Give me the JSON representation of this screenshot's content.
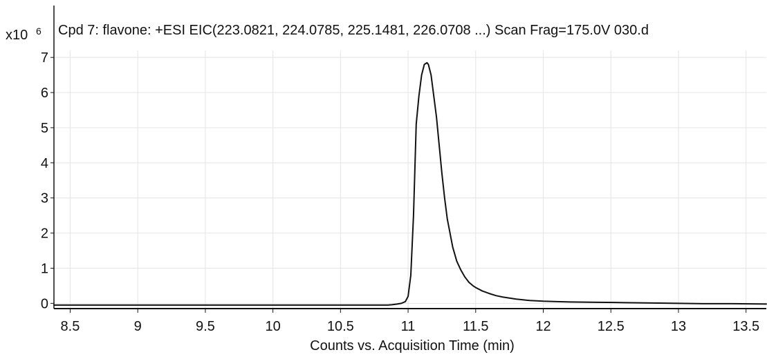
{
  "chart_data": {
    "type": "line",
    "title": "Cpd 7: flavone: +ESI EIC(223.0821, 224.0785, 225.1481, 226.0708 ...) Scan Frag=175.0V 030.d",
    "xlabel": "Counts vs. Acquisition Time (min)",
    "ylabel": "",
    "y_scale_prefix": "x10",
    "y_scale_exponent": "6",
    "xlim": [
      8.38,
      13.65
    ],
    "ylim": [
      -0.15,
      7.2
    ],
    "x_ticks": [
      8.5,
      9,
      9.5,
      10,
      10.5,
      11,
      11.5,
      12,
      12.5,
      13,
      13.5
    ],
    "x_tick_labels": [
      "8.5",
      "9",
      "9.5",
      "10",
      "10.5",
      "11",
      "11.5",
      "12",
      "12.5",
      "13",
      "13.5"
    ],
    "y_ticks": [
      0,
      1,
      2,
      3,
      4,
      5,
      6,
      7
    ],
    "y_tick_labels": [
      "0",
      "1",
      "2",
      "3",
      "4",
      "5",
      "6",
      "7"
    ],
    "grid": true,
    "legend": "none",
    "series": [
      {
        "color": "#111111",
        "x": [
          8.38,
          10.85,
          10.88,
          10.92,
          10.95,
          10.98,
          11.0,
          11.02,
          11.04,
          11.06,
          11.08,
          11.1,
          11.12,
          11.14,
          11.15,
          11.17,
          11.19,
          11.21,
          11.23,
          11.25,
          11.27,
          11.29,
          11.31,
          11.33,
          11.36,
          11.39,
          11.42,
          11.45,
          11.48,
          11.5,
          11.55,
          11.6,
          11.65,
          11.7,
          11.75,
          11.8,
          11.85,
          11.9,
          12.0,
          12.1,
          12.2,
          12.4,
          12.6,
          12.8,
          13.0,
          13.2,
          13.4,
          13.65
        ],
        "y": [
          -0.05,
          -0.05,
          -0.04,
          -0.02,
          0.0,
          0.05,
          0.2,
          0.8,
          2.5,
          5.1,
          5.9,
          6.5,
          6.8,
          6.85,
          6.8,
          6.5,
          5.9,
          5.3,
          4.5,
          3.7,
          3.0,
          2.4,
          2.0,
          1.6,
          1.2,
          0.95,
          0.75,
          0.6,
          0.5,
          0.45,
          0.35,
          0.28,
          0.22,
          0.18,
          0.15,
          0.12,
          0.1,
          0.08,
          0.06,
          0.05,
          0.04,
          0.03,
          0.02,
          0.01,
          0.0,
          -0.01,
          -0.01,
          -0.02
        ]
      }
    ]
  }
}
